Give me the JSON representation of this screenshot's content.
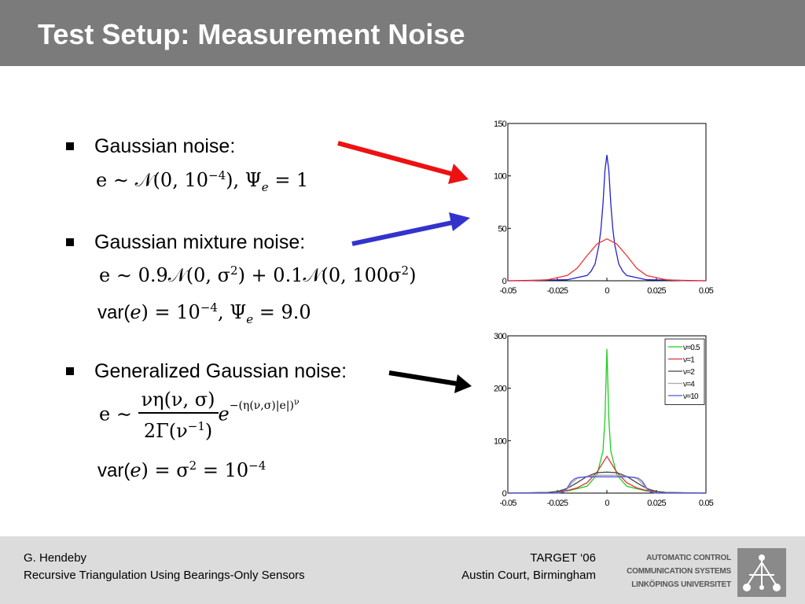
{
  "slide": {
    "title": "Test Setup: Measurement Noise"
  },
  "bullets": [
    {
      "label": "Gaussian noise:"
    },
    {
      "label": "Gaussian mixture noise:"
    },
    {
      "label": "Generalized Gaussian noise:"
    }
  ],
  "equations": {
    "gauss_pre": "e ∼ 𝒩(0, 10",
    "gauss_exp": "−4",
    "gauss_post": "), Ψ",
    "gauss_sub": "e",
    "gauss_tail": " = 1",
    "mix_1": "e ∼ 0.9𝒩(0, σ",
    "mix_exp1": "2",
    "mix_2": ") + 0.1𝒩(0, 100σ",
    "mix_exp2": "2",
    "mix_3": ")",
    "mixvar_pre": "var(",
    "mixvar_e": "e",
    "mixvar_mid": ") = 10",
    "mixvar_exp": "−4",
    "mixvar_post": ", Ψ",
    "mixvar_sub": "e",
    "mixvar_tail": " = 9.0",
    "gg_lhs": "e ∼",
    "gg_num": "νη(ν, σ)",
    "gg_den": "2Γ(ν",
    "gg_den_exp": "−1",
    "gg_den_end": ")",
    "gg_e": "e",
    "gg_exp": "−(η(ν,σ)|e|)",
    "gg_exp_nu": "ν",
    "ggvar_pre": "var(",
    "ggvar_e": "e",
    "ggvar_mid": ") = σ",
    "ggvar_exp": "2",
    "ggvar_eq": " = 10",
    "ggvar_exp2": "−4"
  },
  "arrows": {
    "gaussian_color": "#ee1111",
    "mixture_color": "#3333cc",
    "generalized_color": "#000000"
  },
  "chart_data": [
    {
      "type": "line",
      "xlim": [
        -0.05,
        0.05
      ],
      "ylim": [
        0,
        150
      ],
      "xticks": [
        "-0.05",
        "-0.025",
        "0",
        "0.025",
        "0.05"
      ],
      "yticks": [
        "0",
        "50",
        "100",
        "150"
      ],
      "grid": false,
      "series": [
        {
          "color": "#2222cc",
          "x": [
            -0.05,
            -0.02,
            -0.01,
            -0.008,
            -0.006,
            -0.004,
            -0.003,
            -0.002,
            -0.001,
            0,
            0.001,
            0.002,
            0.003,
            0.004,
            0.006,
            0.008,
            0.01,
            0.02,
            0.05
          ],
          "y": [
            0,
            1,
            5,
            9,
            16,
            34,
            49,
            73,
            105,
            120,
            105,
            73,
            49,
            34,
            16,
            9,
            5,
            1,
            0
          ]
        },
        {
          "color": "#ee3333",
          "x": [
            -0.05,
            -0.04,
            -0.03,
            -0.02,
            -0.015,
            -0.01,
            -0.005,
            0,
            0.005,
            0.01,
            0.015,
            0.02,
            0.03,
            0.04,
            0.05
          ],
          "y": [
            0,
            0,
            1,
            5,
            12,
            24,
            35,
            40,
            35,
            24,
            12,
            5,
            1,
            0,
            0
          ]
        }
      ]
    },
    {
      "type": "line",
      "xlim": [
        -0.05,
        0.05
      ],
      "ylim": [
        0,
        300
      ],
      "xticks": [
        "-0.05",
        "-0.025",
        "0",
        "0.025",
        "0.05"
      ],
      "yticks": [
        "0",
        "100",
        "200",
        "300"
      ],
      "grid": false,
      "legend_position": "top-right",
      "legend": [
        "ν=0.5",
        "ν=1",
        "ν=2",
        "ν=4",
        "ν=10"
      ],
      "series": [
        {
          "color": "#22cc22",
          "x": [
            -0.05,
            -0.03,
            -0.02,
            -0.01,
            -0.005,
            -0.002,
            -0.001,
            0,
            0.001,
            0.002,
            0.005,
            0.01,
            0.02,
            0.03,
            0.05
          ],
          "y": [
            0,
            1,
            4,
            13,
            35,
            80,
            140,
            275,
            140,
            80,
            35,
            13,
            4,
            1,
            0
          ]
        },
        {
          "color": "#dd3333",
          "x": [
            -0.05,
            -0.03,
            -0.02,
            -0.015,
            -0.01,
            -0.005,
            -0.002,
            0,
            0.002,
            0.005,
            0.01,
            0.015,
            0.02,
            0.03,
            0.05
          ],
          "y": [
            0,
            1,
            5,
            10,
            20,
            40,
            58,
            70,
            58,
            40,
            20,
            10,
            5,
            1,
            0
          ]
        },
        {
          "color": "#444444",
          "x": [
            -0.05,
            -0.03,
            -0.025,
            -0.02,
            -0.015,
            -0.01,
            -0.005,
            0,
            0.005,
            0.01,
            0.015,
            0.02,
            0.025,
            0.03,
            0.05
          ],
          "y": [
            0,
            1,
            3,
            9,
            20,
            32,
            39,
            40,
            39,
            32,
            20,
            9,
            3,
            1,
            0
          ]
        },
        {
          "color": "#aaaaaa",
          "x": [
            -0.05,
            -0.025,
            -0.022,
            -0.02,
            -0.018,
            -0.015,
            -0.01,
            -0.005,
            0,
            0.005,
            0.01,
            0.015,
            0.018,
            0.02,
            0.022,
            0.025,
            0.05
          ],
          "y": [
            0,
            0,
            2,
            8,
            18,
            28,
            32,
            34,
            34,
            34,
            32,
            28,
            18,
            8,
            2,
            0,
            0
          ]
        },
        {
          "color": "#5555dd",
          "x": [
            -0.05,
            -0.025,
            -0.022,
            -0.02,
            -0.018,
            -0.016,
            -0.014,
            -0.01,
            0,
            0.01,
            0.014,
            0.016,
            0.018,
            0.02,
            0.022,
            0.025,
            0.05
          ],
          "y": [
            0,
            0,
            2,
            10,
            22,
            28,
            30,
            31,
            31,
            31,
            30,
            28,
            22,
            10,
            2,
            0,
            0
          ]
        }
      ]
    }
  ],
  "footer": {
    "author": "G. Hendeby",
    "talk_title": "Recursive Triangulation Using Bearings-Only Sensors",
    "event": "TARGET ‘06",
    "venue": "Austin Court, Birmingham",
    "institution_line1": "AUTOMATIC CONTROL",
    "institution_line2": "COMMUNICATION SYSTEMS",
    "institution_line3": "LINKÖPINGS UNIVERSITET"
  }
}
